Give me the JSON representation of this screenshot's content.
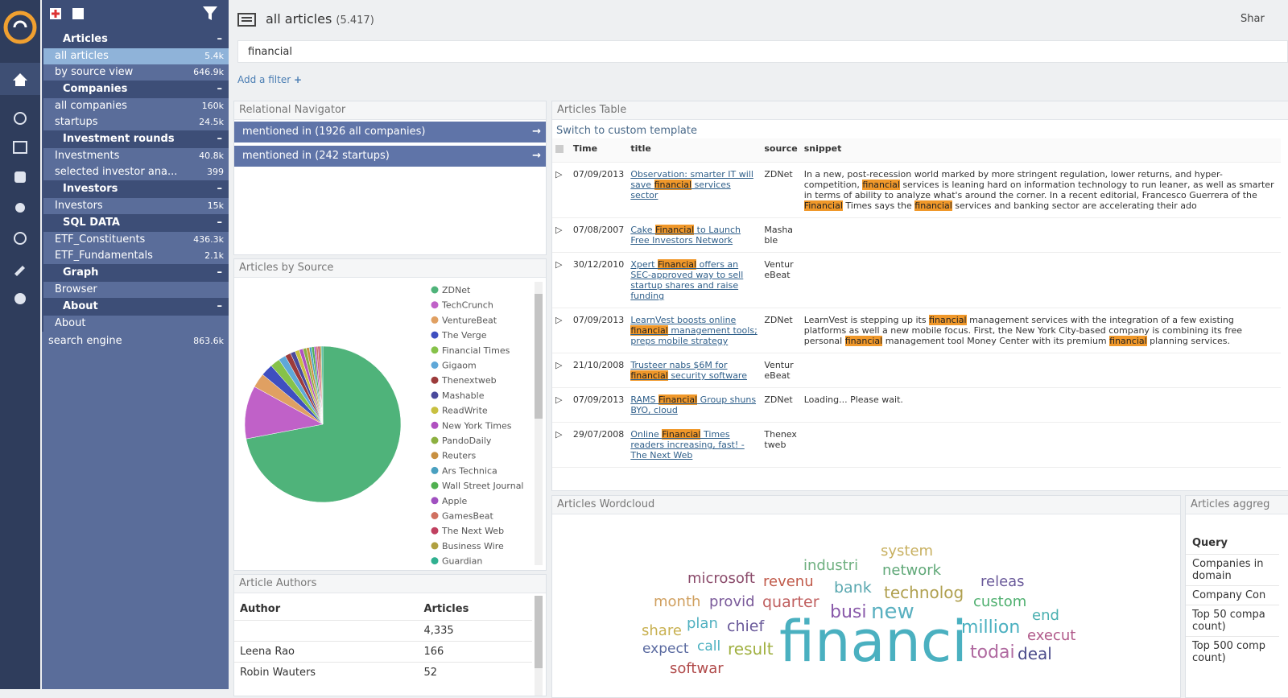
{
  "header": {
    "title": "all articles",
    "count": "(5.417)",
    "share": "Shar"
  },
  "search": {
    "query": "financial",
    "add_filter": "Add a filter"
  },
  "sidebar": [
    {
      "title": "Articles",
      "items": [
        {
          "label": "all articles",
          "count": "5.4k",
          "selected": true
        },
        {
          "label": "by source view",
          "count": "646.9k"
        }
      ]
    },
    {
      "title": "Companies",
      "items": [
        {
          "label": "all companies",
          "count": "160k"
        },
        {
          "label": "startups",
          "count": "24.5k"
        }
      ]
    },
    {
      "title": "Investment rounds",
      "items": [
        {
          "label": "Investments",
          "count": "40.8k"
        },
        {
          "label": "selected investor ana...",
          "count": "399"
        }
      ]
    },
    {
      "title": "Investors",
      "items": [
        {
          "label": "Investors",
          "count": "15k"
        }
      ]
    },
    {
      "title": "SQL DATA",
      "items": [
        {
          "label": "ETF_Constituents",
          "count": "436.3k"
        },
        {
          "label": "ETF_Fundamentals",
          "count": "2.1k"
        }
      ]
    },
    {
      "title": "Graph",
      "items": [
        {
          "label": "Browser"
        }
      ]
    },
    {
      "title": "About",
      "items": [
        {
          "label": "About"
        }
      ]
    }
  ],
  "sidebar_footer": {
    "label": "search engine",
    "count": "863.6k"
  },
  "navigator": {
    "title": "Relational Navigator",
    "links": [
      "mentioned in (1926 all companies)",
      "mentioned in (242 startups)"
    ]
  },
  "chart_data": {
    "type": "pie",
    "title": "Articles by Source",
    "categories": [
      "ZDNet",
      "TechCrunch",
      "VentureBeat",
      "The Verge",
      "Financial Times",
      "Gigaom",
      "Thenextweb",
      "Mashable",
      "ReadWrite",
      "New York Times",
      "PandoDaily",
      "Reuters",
      "Ars Technica",
      "Wall Street Journal",
      "Apple",
      "GamesBeat",
      "The Next Web",
      "Business Wire",
      "Guardian"
    ],
    "values": [
      72,
      11,
      3,
      2.5,
      2,
      1.5,
      1.2,
      1,
      0.9,
      0.8,
      0.7,
      0.6,
      0.5,
      0.5,
      0.4,
      0.4,
      0.4,
      0.3,
      0.3
    ],
    "colors": [
      "#4fb37a",
      "#c061c8",
      "#e0a062",
      "#3f4fc0",
      "#86c24a",
      "#5fa8d8",
      "#9c3b3b",
      "#4a4a9c",
      "#c8c040",
      "#b050c0",
      "#8cb040",
      "#c89040",
      "#4aa0c0",
      "#50b050",
      "#a050c0",
      "#d07060",
      "#c04060",
      "#b0a040",
      "#30b090"
    ]
  },
  "articles_table": {
    "title": "Articles Table",
    "template_link": "Switch to custom template",
    "columns": [
      "Time",
      "title",
      "source",
      "snippet"
    ],
    "rows": [
      {
        "time": "07/09/2013",
        "title": "Observation: smarter IT will save financial services sector",
        "source": "ZDNet",
        "snippet": "In a new, post-recession world marked by more stringent regulation, lower returns, and hyper-competition, financial services is leaning hard on information technology to run leaner, as well as smarter in terms of ability to analyze what's around the corner. In a recent editorial, Francesco Guerrera of the Financial Times says the financial services and banking sector are accelerating their ado"
      },
      {
        "time": "07/08/2007",
        "title": "Cake Financial to Launch Free Investors Network",
        "source": "Mashable"
      },
      {
        "time": "30/12/2010",
        "title": "Xpert Financial offers an SEC-approved way to sell startup shares and raise funding",
        "source": "VentureBeat"
      },
      {
        "time": "07/09/2013",
        "title": "LearnVest boosts online financial management tools; preps mobile strategy",
        "source": "ZDNet",
        "snippet": "LearnVest is stepping up its financial management services with the integration of a few existing platforms as well a new mobile focus. First, the New York City-based company is combining its free personal financial management tool Money Center with its premium financial planning services."
      },
      {
        "time": "21/10/2008",
        "title": "Trusteer nabs $6M for financial security software",
        "source": "VentureBeat"
      },
      {
        "time": "07/09/2013",
        "title": "RAMS Financial Group shuns BYO, cloud",
        "source": "ZDNet",
        "snippet": "Loading... Please wait."
      },
      {
        "time": "29/07/2008",
        "title": "Online Financial Times readers increasing, fast! - The Next Web",
        "source": "Thenextweb"
      }
    ]
  },
  "wordcloud": {
    "title": "Articles Wordcloud",
    "words": [
      {
        "text": "system",
        "weight": 18,
        "color": "#c8b060"
      },
      {
        "text": "industri",
        "weight": 18,
        "color": "#6fb080"
      },
      {
        "text": "network",
        "weight": 18,
        "color": "#60a878"
      },
      {
        "text": "microsoft",
        "weight": 18,
        "color": "#8a4a6a"
      },
      {
        "text": "revenu",
        "weight": 18,
        "color": "#c05a4a"
      },
      {
        "text": "bank",
        "weight": 19,
        "color": "#5aa8b0"
      },
      {
        "text": "technolog",
        "weight": 20,
        "color": "#b0a050"
      },
      {
        "text": "releas",
        "weight": 18,
        "color": "#6a5a9a"
      },
      {
        "text": "month",
        "weight": 18,
        "color": "#d0a060"
      },
      {
        "text": "provid",
        "weight": 18,
        "color": "#7a5a9a"
      },
      {
        "text": "quarter",
        "weight": 19,
        "color": "#c06060"
      },
      {
        "text": "busi",
        "weight": 22,
        "color": "#8a5aaa"
      },
      {
        "text": "new",
        "weight": 26,
        "color": "#5ab0c0"
      },
      {
        "text": "custom",
        "weight": 18,
        "color": "#50b070"
      },
      {
        "text": "end",
        "weight": 18,
        "color": "#4ab0b0"
      },
      {
        "text": "share",
        "weight": 18,
        "color": "#c8b050"
      },
      {
        "text": "plan",
        "weight": 18,
        "color": "#50b0c0"
      },
      {
        "text": "chief",
        "weight": 19,
        "color": "#6a5a9a"
      },
      {
        "text": "financi",
        "weight": 70,
        "color": "#4ab0c0"
      },
      {
        "text": "million",
        "weight": 22,
        "color": "#4ab0c0"
      },
      {
        "text": "execut",
        "weight": 18,
        "color": "#b05a8a"
      },
      {
        "text": "expect",
        "weight": 17,
        "color": "#5a6aa0"
      },
      {
        "text": "call",
        "weight": 17,
        "color": "#4ab0c0"
      },
      {
        "text": "result",
        "weight": 20,
        "color": "#a0b040"
      },
      {
        "text": "todai",
        "weight": 22,
        "color": "#b06aa0"
      },
      {
        "text": "deal",
        "weight": 20,
        "color": "#4a4a8a"
      },
      {
        "text": "softwar",
        "weight": 18,
        "color": "#b04a4a"
      }
    ]
  },
  "authors": {
    "title": "Article Authors",
    "columns": [
      "Author",
      "Articles"
    ],
    "rows": [
      [
        null,
        "4,335"
      ],
      [
        "Leena Rao",
        "166"
      ],
      [
        "Robin Wauters",
        "52"
      ]
    ]
  },
  "aggregation": {
    "title": "Articles aggreg",
    "column": "Query",
    "rows": [
      "Companies in domain",
      "Company Con",
      "Top 50 compa count)",
      "Top 500 comp count)"
    ]
  }
}
